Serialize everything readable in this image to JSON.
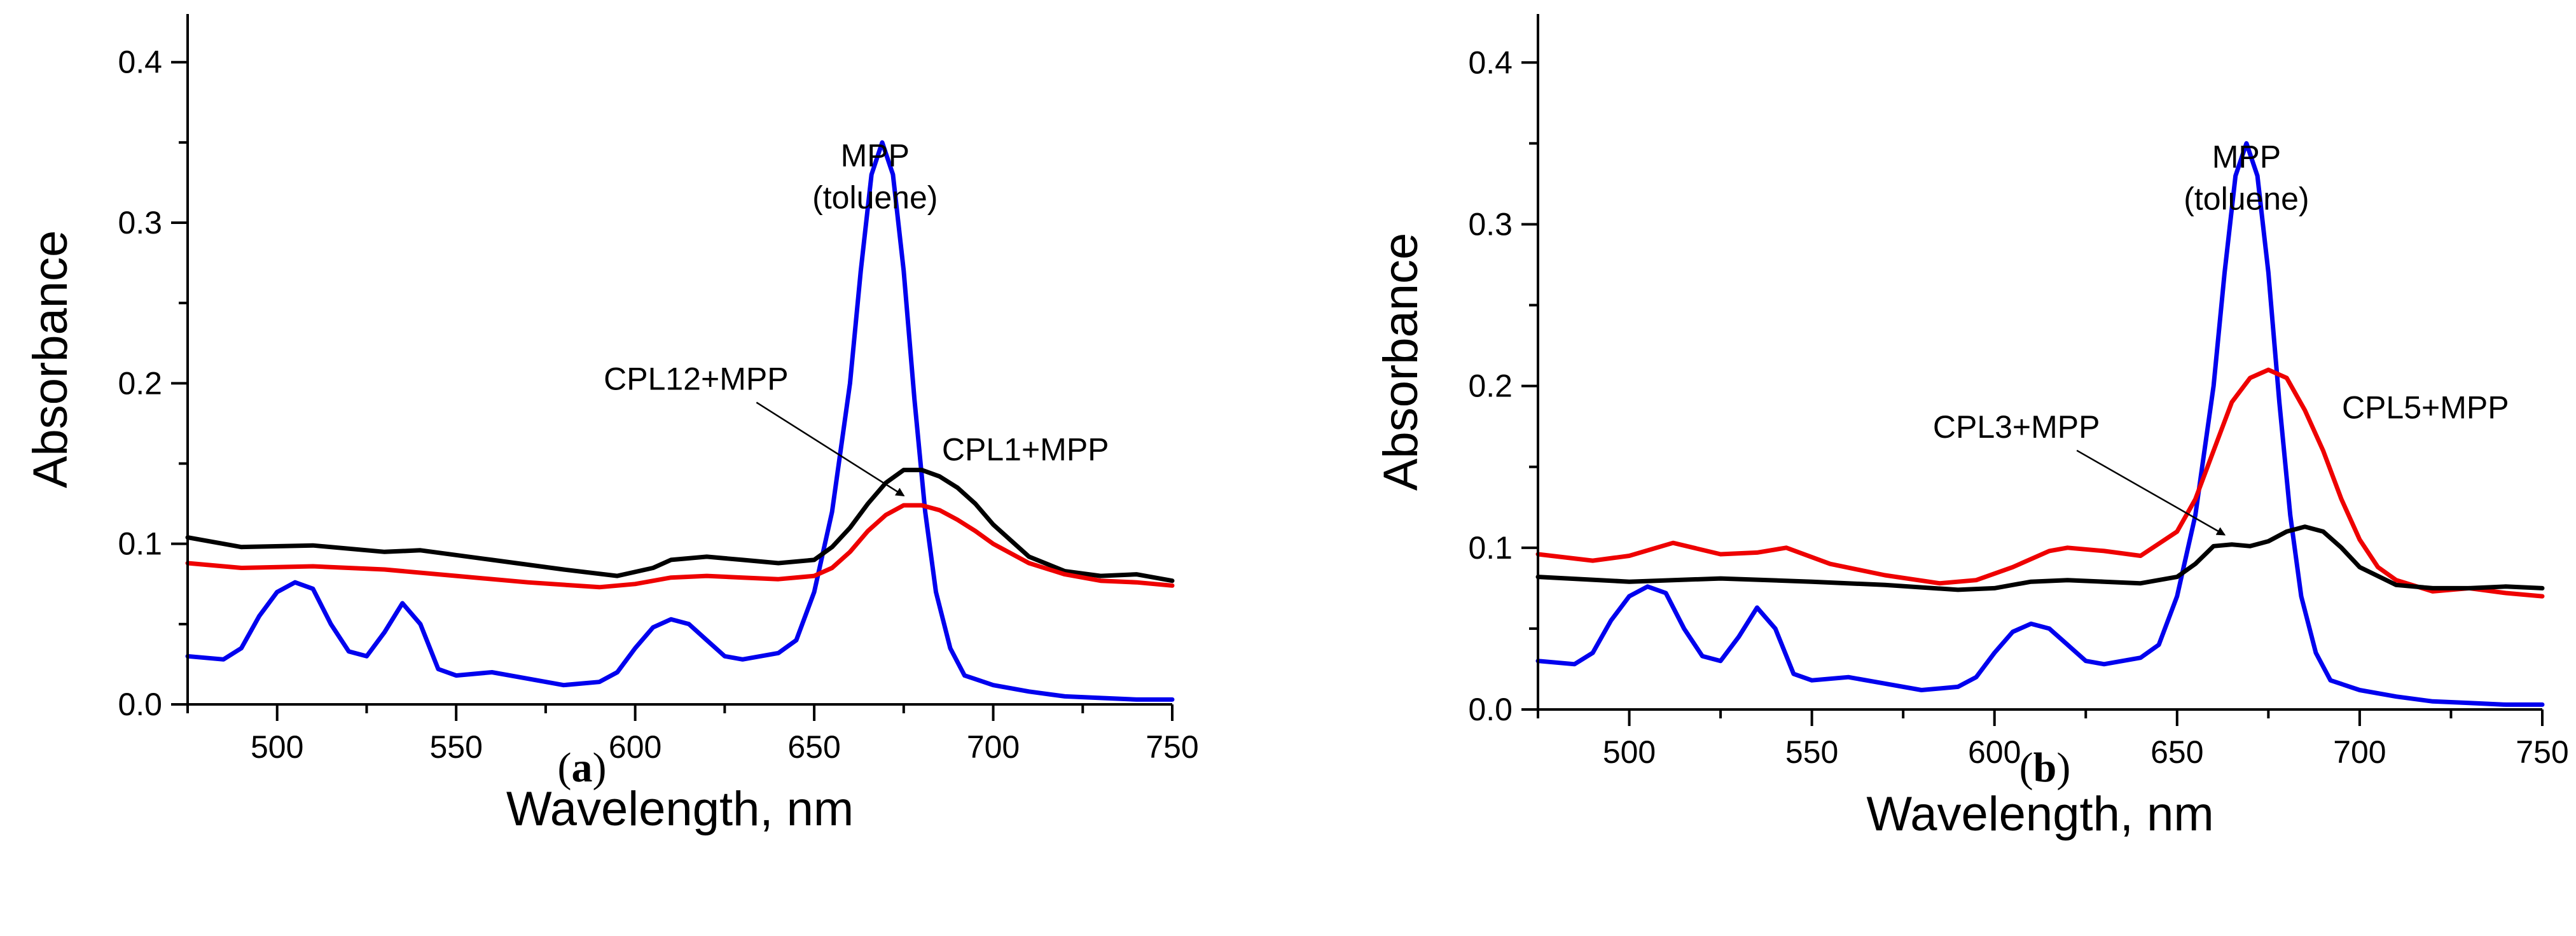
{
  "chart_data": [
    {
      "type": "line",
      "panel": "a",
      "panel_label": {
        "open": "(",
        "letter": "a",
        "close": ")"
      },
      "xlabel": "Wavelength, nm",
      "ylabel": "Absorbance",
      "xlim": [
        475,
        750
      ],
      "ylim": [
        0,
        0.43
      ],
      "xticks": [
        500,
        550,
        600,
        650,
        700,
        750
      ],
      "yticks": [
        0.0,
        0.1,
        0.2,
        0.3,
        0.4
      ],
      "series": [
        {
          "name": "MPP (toluene)",
          "color": "#0000ee",
          "x": [
            475,
            485,
            490,
            495,
            500,
            505,
            510,
            515,
            520,
            525,
            530,
            535,
            540,
            545,
            550,
            560,
            570,
            580,
            590,
            595,
            600,
            605,
            610,
            615,
            620,
            625,
            630,
            640,
            645,
            650,
            655,
            660,
            663,
            666,
            669,
            672,
            675,
            678,
            681,
            684,
            688,
            692,
            700,
            710,
            720,
            730,
            740,
            750
          ],
          "y": [
            0.03,
            0.028,
            0.035,
            0.055,
            0.07,
            0.076,
            0.072,
            0.05,
            0.033,
            0.03,
            0.045,
            0.063,
            0.05,
            0.022,
            0.018,
            0.02,
            0.016,
            0.012,
            0.014,
            0.02,
            0.035,
            0.048,
            0.053,
            0.05,
            0.04,
            0.03,
            0.028,
            0.032,
            0.04,
            0.07,
            0.12,
            0.2,
            0.27,
            0.33,
            0.35,
            0.33,
            0.27,
            0.19,
            0.12,
            0.07,
            0.035,
            0.018,
            0.012,
            0.008,
            0.005,
            0.004,
            0.003,
            0.003
          ]
        },
        {
          "name": "CPL1+MPP",
          "color": "#000000",
          "x": [
            475,
            490,
            510,
            530,
            540,
            560,
            580,
            595,
            605,
            610,
            620,
            630,
            640,
            650,
            655,
            660,
            665,
            670,
            675,
            680,
            685,
            690,
            695,
            700,
            710,
            720,
            730,
            740,
            750
          ],
          "y": [
            0.104,
            0.098,
            0.099,
            0.095,
            0.096,
            0.09,
            0.084,
            0.08,
            0.085,
            0.09,
            0.092,
            0.09,
            0.088,
            0.09,
            0.098,
            0.11,
            0.125,
            0.138,
            0.146,
            0.146,
            0.142,
            0.135,
            0.125,
            0.112,
            0.092,
            0.083,
            0.08,
            0.081,
            0.077
          ]
        },
        {
          "name": "CPL12+MPP",
          "color": "#ee0000",
          "x": [
            475,
            490,
            510,
            530,
            550,
            570,
            590,
            600,
            610,
            620,
            630,
            640,
            650,
            655,
            660,
            665,
            670,
            675,
            680,
            685,
            690,
            695,
            700,
            710,
            720,
            730,
            740,
            750
          ],
          "y": [
            0.088,
            0.085,
            0.086,
            0.084,
            0.08,
            0.076,
            0.073,
            0.075,
            0.079,
            0.08,
            0.079,
            0.078,
            0.08,
            0.085,
            0.095,
            0.108,
            0.118,
            0.124,
            0.124,
            0.121,
            0.115,
            0.108,
            0.1,
            0.088,
            0.081,
            0.077,
            0.076,
            0.074
          ]
        }
      ],
      "annotations": [
        {
          "lines": [
            "MPP",
            "(toluene)"
          ],
          "x": 667,
          "y": 0.335
        },
        {
          "lines": [
            "CPL12+MPP"
          ],
          "x": 617,
          "y": 0.196,
          "arrow_to": [
            675,
            0.13
          ]
        },
        {
          "lines": [
            "CPL1+MPP"
          ],
          "x": 709,
          "y": 0.152
        }
      ]
    },
    {
      "type": "line",
      "panel": "b",
      "panel_label": {
        "open": "(",
        "letter": "b",
        "close": ")"
      },
      "xlabel": "Wavelength, nm",
      "ylabel": "Absorbance",
      "xlim": [
        475,
        750
      ],
      "ylim": [
        0,
        0.43
      ],
      "xticks": [
        500,
        550,
        600,
        650,
        700,
        750
      ],
      "yticks": [
        0.0,
        0.1,
        0.2,
        0.3,
        0.4
      ],
      "series": [
        {
          "name": "MPP (toluene)",
          "color": "#0000ee",
          "x": [
            475,
            485,
            490,
            495,
            500,
            505,
            510,
            515,
            520,
            525,
            530,
            535,
            540,
            545,
            550,
            560,
            570,
            580,
            590,
            595,
            600,
            605,
            610,
            615,
            620,
            625,
            630,
            640,
            645,
            650,
            655,
            660,
            663,
            666,
            669,
            672,
            675,
            678,
            681,
            684,
            688,
            692,
            700,
            710,
            720,
            730,
            740,
            750
          ],
          "y": [
            0.03,
            0.028,
            0.035,
            0.055,
            0.07,
            0.076,
            0.072,
            0.05,
            0.033,
            0.03,
            0.045,
            0.063,
            0.05,
            0.022,
            0.018,
            0.02,
            0.016,
            0.012,
            0.014,
            0.02,
            0.035,
            0.048,
            0.053,
            0.05,
            0.04,
            0.03,
            0.028,
            0.032,
            0.04,
            0.07,
            0.12,
            0.2,
            0.27,
            0.33,
            0.35,
            0.33,
            0.27,
            0.19,
            0.12,
            0.07,
            0.035,
            0.018,
            0.012,
            0.008,
            0.005,
            0.004,
            0.003,
            0.003
          ]
        },
        {
          "name": "CPL5+MPP",
          "color": "#ee0000",
          "x": [
            475,
            490,
            500,
            512,
            525,
            535,
            543,
            555,
            570,
            585,
            595,
            605,
            615,
            620,
            630,
            640,
            650,
            655,
            660,
            665,
            670,
            675,
            680,
            685,
            690,
            695,
            700,
            705,
            710,
            720,
            730,
            740,
            750
          ],
          "y": [
            0.096,
            0.092,
            0.095,
            0.103,
            0.096,
            0.097,
            0.1,
            0.09,
            0.083,
            0.078,
            0.08,
            0.088,
            0.098,
            0.1,
            0.098,
            0.095,
            0.11,
            0.13,
            0.16,
            0.19,
            0.205,
            0.21,
            0.205,
            0.185,
            0.16,
            0.13,
            0.105,
            0.088,
            0.08,
            0.073,
            0.075,
            0.072,
            0.07
          ]
        },
        {
          "name": "CPL3+MPP",
          "color": "#000000",
          "x": [
            475,
            500,
            525,
            550,
            570,
            590,
            600,
            610,
            620,
            630,
            640,
            650,
            655,
            660,
            665,
            670,
            675,
            680,
            685,
            690,
            695,
            700,
            710,
            720,
            730,
            740,
            750
          ],
          "y": [
            0.082,
            0.079,
            0.081,
            0.079,
            0.077,
            0.074,
            0.075,
            0.079,
            0.08,
            0.079,
            0.078,
            0.082,
            0.09,
            0.101,
            0.102,
            0.101,
            0.104,
            0.11,
            0.113,
            0.11,
            0.1,
            0.088,
            0.077,
            0.075,
            0.075,
            0.076,
            0.075
          ]
        }
      ],
      "annotations": [
        {
          "lines": [
            "MPP",
            "(toluene)"
          ],
          "x": 669,
          "y": 0.335
        },
        {
          "lines": [
            "CPL3+MPP"
          ],
          "x": 606,
          "y": 0.168,
          "arrow_to": [
            663,
            0.108
          ]
        },
        {
          "lines": [
            "CPL5+MPP"
          ],
          "x": 718,
          "y": 0.18
        }
      ]
    }
  ]
}
